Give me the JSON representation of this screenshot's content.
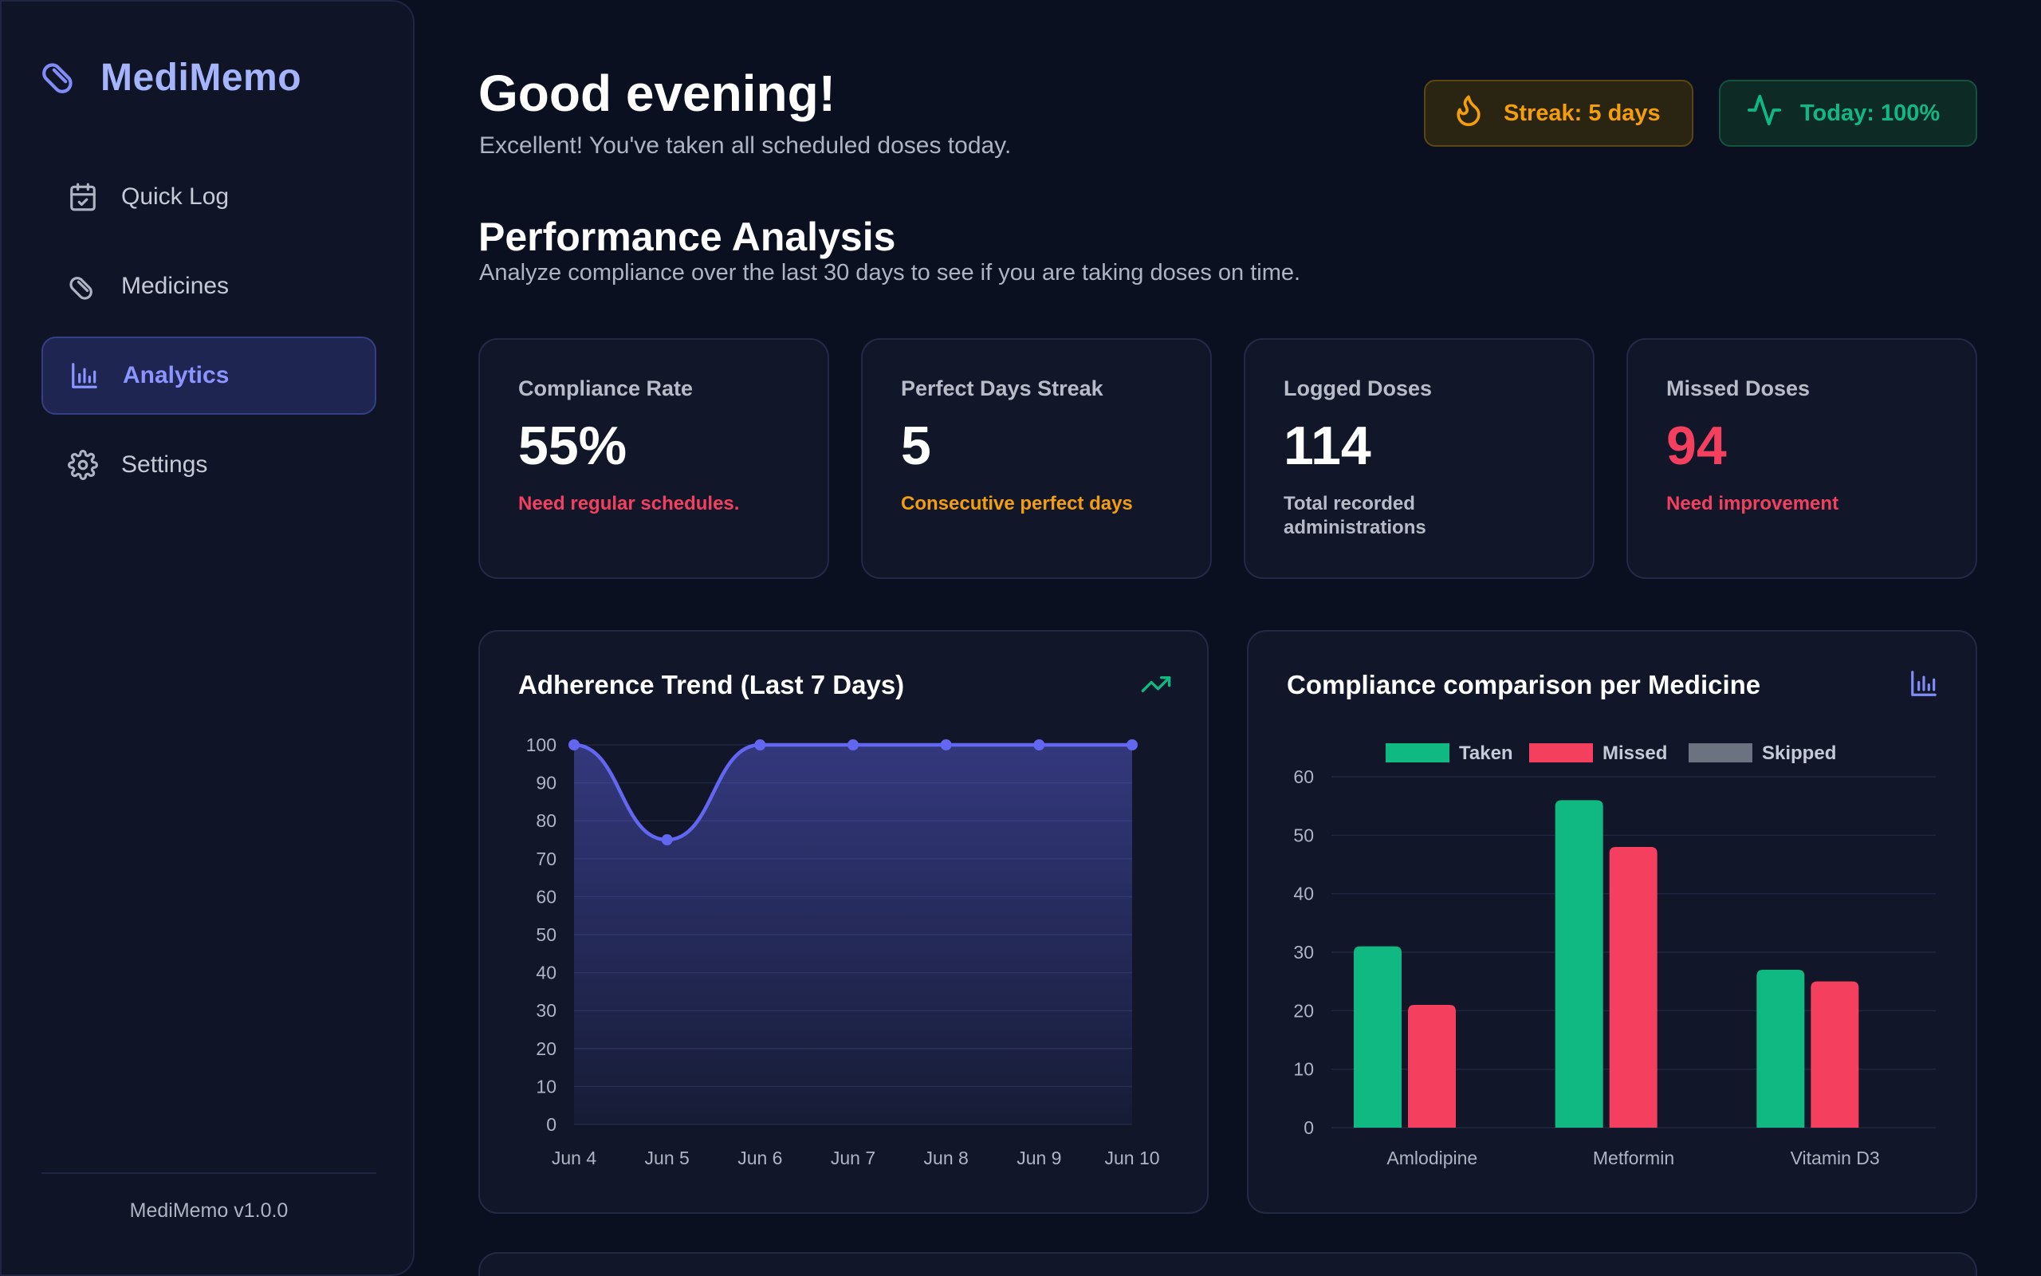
{
  "sidebar": {
    "brand": "MediMemo",
    "items": [
      {
        "label": "Quick Log",
        "icon": "calendar-check-icon",
        "active": false
      },
      {
        "label": "Medicines",
        "icon": "pill-icon",
        "active": false
      },
      {
        "label": "Analytics",
        "icon": "bar-chart-icon",
        "active": true
      },
      {
        "label": "Settings",
        "icon": "gear-icon",
        "active": false
      }
    ],
    "version": "MediMemo v1.0.0"
  },
  "header": {
    "greeting": "Good evening!",
    "subtitle": "Excellent! You've taken all scheduled doses today.",
    "streak_label": "Streak: 5 days",
    "today_label": "Today: 100%"
  },
  "section": {
    "title": "Performance Analysis",
    "subtitle": "Analyze compliance over the last 30 days to see if you are taking doses on time."
  },
  "stats": [
    {
      "label": "Compliance Rate",
      "value": "55%",
      "note": "Need regular schedules.",
      "note_color": "#f43f5e",
      "value_color": "#ffffff"
    },
    {
      "label": "Perfect Days Streak",
      "value": "5",
      "note": "Consecutive perfect days",
      "note_color": "#f59e0b",
      "value_color": "#ffffff"
    },
    {
      "label": "Logged Doses",
      "value": "114",
      "note": "Total recorded administrations",
      "note_color": "#b7bcc8",
      "value_color": "#ffffff"
    },
    {
      "label": "Missed Doses",
      "value": "94",
      "note": "Need improvement",
      "note_color": "#f43f5e",
      "value_color": "#f43f5e"
    }
  ],
  "colors": {
    "accent": "#6366f1",
    "taken": "#10b981",
    "missed": "#f43f5e",
    "skipped": "#6b7280"
  },
  "chart_data": [
    {
      "type": "area",
      "title": "Adherence Trend (Last 7 Days)",
      "categories": [
        "Jun 4",
        "Jun 5",
        "Jun 6",
        "Jun 7",
        "Jun 8",
        "Jun 9",
        "Jun 10"
      ],
      "values": [
        100,
        75,
        100,
        100,
        100,
        100,
        100
      ],
      "ylim": [
        0,
        100
      ],
      "yticks": [
        0,
        10,
        20,
        30,
        40,
        50,
        60,
        70,
        80,
        90,
        100
      ],
      "grid": true
    },
    {
      "type": "bar",
      "title": "Compliance comparison per Medicine",
      "categories": [
        "Amlodipine",
        "Metformin",
        "Vitamin D3"
      ],
      "series": [
        {
          "name": "Taken",
          "values": [
            31,
            56,
            27
          ]
        },
        {
          "name": "Missed",
          "values": [
            21,
            48,
            25
          ]
        },
        {
          "name": "Skipped",
          "values": [
            0,
            0,
            0
          ]
        }
      ],
      "ylim": [
        0,
        60
      ],
      "yticks": [
        0,
        10,
        20,
        30,
        40,
        50,
        60
      ],
      "legend": "top",
      "grid": true
    }
  ]
}
